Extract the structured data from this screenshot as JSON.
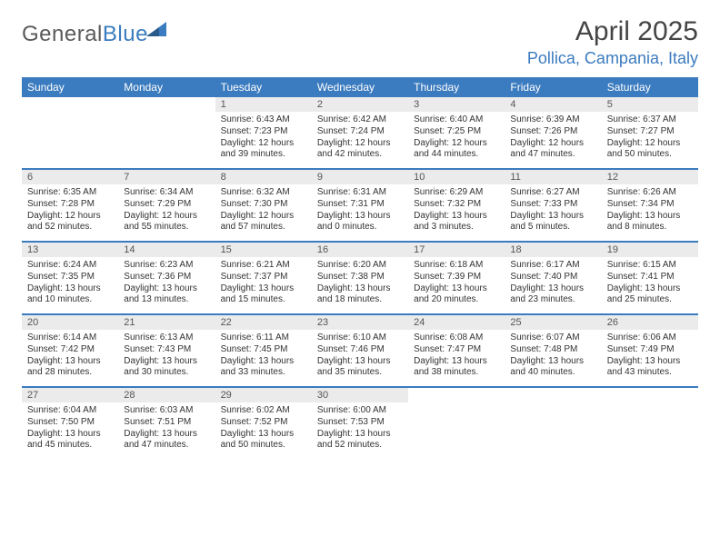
{
  "logo": {
    "textGray": "General",
    "textBlue": "Blue"
  },
  "title": "April 2025",
  "location": "Pollica, Campania, Italy",
  "colors": {
    "headerBlue": "#3b7bbf",
    "dayBarGray": "#ebebeb",
    "textDark": "#333333",
    "titleGray": "#454545"
  },
  "dayNames": [
    "Sunday",
    "Monday",
    "Tuesday",
    "Wednesday",
    "Thursday",
    "Friday",
    "Saturday"
  ],
  "weeks": [
    [
      {
        "day": "",
        "sunrise": "",
        "sunset": "",
        "daylight": ""
      },
      {
        "day": "",
        "sunrise": "",
        "sunset": "",
        "daylight": ""
      },
      {
        "day": "1",
        "sunrise": "6:43 AM",
        "sunset": "7:23 PM",
        "daylight": "12 hours and 39 minutes."
      },
      {
        "day": "2",
        "sunrise": "6:42 AM",
        "sunset": "7:24 PM",
        "daylight": "12 hours and 42 minutes."
      },
      {
        "day": "3",
        "sunrise": "6:40 AM",
        "sunset": "7:25 PM",
        "daylight": "12 hours and 44 minutes."
      },
      {
        "day": "4",
        "sunrise": "6:39 AM",
        "sunset": "7:26 PM",
        "daylight": "12 hours and 47 minutes."
      },
      {
        "day": "5",
        "sunrise": "6:37 AM",
        "sunset": "7:27 PM",
        "daylight": "12 hours and 50 minutes."
      }
    ],
    [
      {
        "day": "6",
        "sunrise": "6:35 AM",
        "sunset": "7:28 PM",
        "daylight": "12 hours and 52 minutes."
      },
      {
        "day": "7",
        "sunrise": "6:34 AM",
        "sunset": "7:29 PM",
        "daylight": "12 hours and 55 minutes."
      },
      {
        "day": "8",
        "sunrise": "6:32 AM",
        "sunset": "7:30 PM",
        "daylight": "12 hours and 57 minutes."
      },
      {
        "day": "9",
        "sunrise": "6:31 AM",
        "sunset": "7:31 PM",
        "daylight": "13 hours and 0 minutes."
      },
      {
        "day": "10",
        "sunrise": "6:29 AM",
        "sunset": "7:32 PM",
        "daylight": "13 hours and 3 minutes."
      },
      {
        "day": "11",
        "sunrise": "6:27 AM",
        "sunset": "7:33 PM",
        "daylight": "13 hours and 5 minutes."
      },
      {
        "day": "12",
        "sunrise": "6:26 AM",
        "sunset": "7:34 PM",
        "daylight": "13 hours and 8 minutes."
      }
    ],
    [
      {
        "day": "13",
        "sunrise": "6:24 AM",
        "sunset": "7:35 PM",
        "daylight": "13 hours and 10 minutes."
      },
      {
        "day": "14",
        "sunrise": "6:23 AM",
        "sunset": "7:36 PM",
        "daylight": "13 hours and 13 minutes."
      },
      {
        "day": "15",
        "sunrise": "6:21 AM",
        "sunset": "7:37 PM",
        "daylight": "13 hours and 15 minutes."
      },
      {
        "day": "16",
        "sunrise": "6:20 AM",
        "sunset": "7:38 PM",
        "daylight": "13 hours and 18 minutes."
      },
      {
        "day": "17",
        "sunrise": "6:18 AM",
        "sunset": "7:39 PM",
        "daylight": "13 hours and 20 minutes."
      },
      {
        "day": "18",
        "sunrise": "6:17 AM",
        "sunset": "7:40 PM",
        "daylight": "13 hours and 23 minutes."
      },
      {
        "day": "19",
        "sunrise": "6:15 AM",
        "sunset": "7:41 PM",
        "daylight": "13 hours and 25 minutes."
      }
    ],
    [
      {
        "day": "20",
        "sunrise": "6:14 AM",
        "sunset": "7:42 PM",
        "daylight": "13 hours and 28 minutes."
      },
      {
        "day": "21",
        "sunrise": "6:13 AM",
        "sunset": "7:43 PM",
        "daylight": "13 hours and 30 minutes."
      },
      {
        "day": "22",
        "sunrise": "6:11 AM",
        "sunset": "7:45 PM",
        "daylight": "13 hours and 33 minutes."
      },
      {
        "day": "23",
        "sunrise": "6:10 AM",
        "sunset": "7:46 PM",
        "daylight": "13 hours and 35 minutes."
      },
      {
        "day": "24",
        "sunrise": "6:08 AM",
        "sunset": "7:47 PM",
        "daylight": "13 hours and 38 minutes."
      },
      {
        "day": "25",
        "sunrise": "6:07 AM",
        "sunset": "7:48 PM",
        "daylight": "13 hours and 40 minutes."
      },
      {
        "day": "26",
        "sunrise": "6:06 AM",
        "sunset": "7:49 PM",
        "daylight": "13 hours and 43 minutes."
      }
    ],
    [
      {
        "day": "27",
        "sunrise": "6:04 AM",
        "sunset": "7:50 PM",
        "daylight": "13 hours and 45 minutes."
      },
      {
        "day": "28",
        "sunrise": "6:03 AM",
        "sunset": "7:51 PM",
        "daylight": "13 hours and 47 minutes."
      },
      {
        "day": "29",
        "sunrise": "6:02 AM",
        "sunset": "7:52 PM",
        "daylight": "13 hours and 50 minutes."
      },
      {
        "day": "30",
        "sunrise": "6:00 AM",
        "sunset": "7:53 PM",
        "daylight": "13 hours and 52 minutes."
      },
      {
        "day": "",
        "sunrise": "",
        "sunset": "",
        "daylight": ""
      },
      {
        "day": "",
        "sunrise": "",
        "sunset": "",
        "daylight": ""
      },
      {
        "day": "",
        "sunrise": "",
        "sunset": "",
        "daylight": ""
      }
    ]
  ],
  "labels": {
    "sunrisePrefix": "Sunrise: ",
    "sunsetPrefix": "Sunset: ",
    "daylightPrefix": "Daylight: "
  }
}
